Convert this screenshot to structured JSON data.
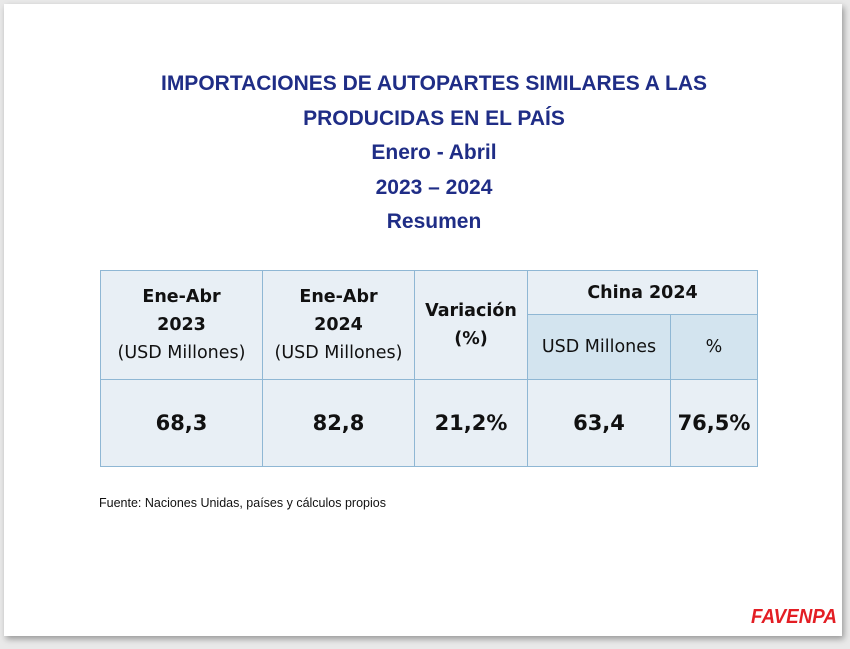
{
  "title": {
    "line1": "IMPORTACIONES DE AUTOPARTES SIMILARES A LAS",
    "line2": "PRODUCIDAS EN EL PAÍS",
    "period": "Enero - Abril",
    "years": "2023 – 2024",
    "subtitle": "Resumen"
  },
  "table": {
    "headers": {
      "col1": {
        "line1": "Ene-Abr",
        "line2": "2023",
        "line3": "(USD Millones)"
      },
      "col2": {
        "line1": "Ene-Abr",
        "line2": "2024",
        "line3": "(USD Millones)"
      },
      "col3": {
        "line1": "Variación",
        "line2": "(%)"
      },
      "group": "China 2024",
      "sub1": "USD Millones",
      "sub2": "%"
    },
    "values": [
      "68,3",
      "82,8",
      "21,2%",
      "63,4",
      "76,5%"
    ]
  },
  "source": "Fuente: Naciones Unidas, países y cálculos propios",
  "logo": {
    "text": "FAVENPA",
    "color": "#e31e24"
  }
}
